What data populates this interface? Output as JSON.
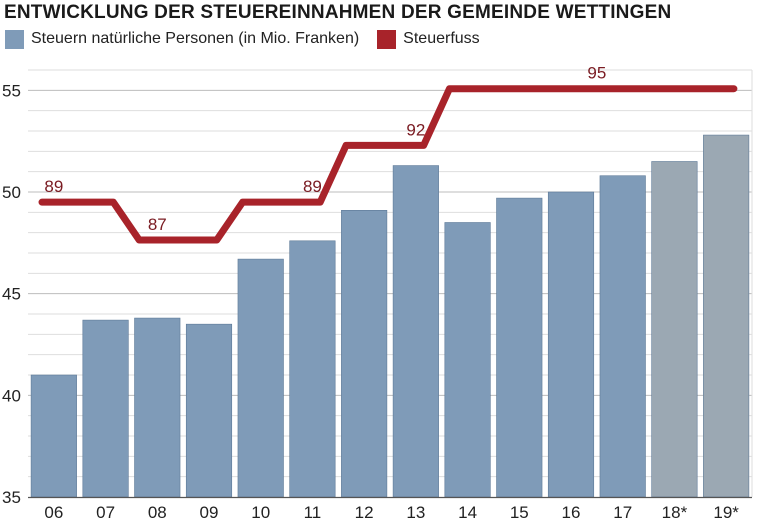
{
  "chart_data": {
    "type": "bar",
    "title": "ENTWICKLUNG DER STEUEREINNAHMEN DER GEMEINDE WETTINGEN",
    "categories": [
      "06",
      "07",
      "08",
      "09",
      "10",
      "11",
      "12",
      "13",
      "14",
      "15",
      "16",
      "17",
      "18*",
      "19*"
    ],
    "ylim": [
      35,
      56
    ],
    "yticks": [
      35,
      40,
      45,
      50,
      55
    ],
    "grid": true,
    "legend": "top-left",
    "series": [
      {
        "name": "Steuern natürliche Personen (in Mio. Franken)",
        "type": "bar",
        "color": "#7f9bb8",
        "forecast_color": "#9ba8b3",
        "forecast_categories": [
          "18*",
          "19*"
        ],
        "values": [
          41.0,
          43.7,
          43.8,
          43.5,
          46.7,
          47.6,
          49.1,
          51.3,
          48.5,
          49.7,
          50.0,
          50.8,
          51.5,
          52.8
        ]
      },
      {
        "name": "Steuerfuss",
        "type": "line",
        "color": "#a8232a",
        "values": [
          89,
          89,
          87,
          87,
          89,
          89,
          92,
          92,
          95,
          95,
          95,
          95,
          95,
          95
        ],
        "labels": [
          {
            "category": "06",
            "text": "89"
          },
          {
            "category": "08",
            "text": "87"
          },
          {
            "category": "11",
            "text": "89"
          },
          {
            "category": "13",
            "text": "92"
          },
          {
            "category": "16",
            "text": "95"
          }
        ]
      }
    ]
  }
}
